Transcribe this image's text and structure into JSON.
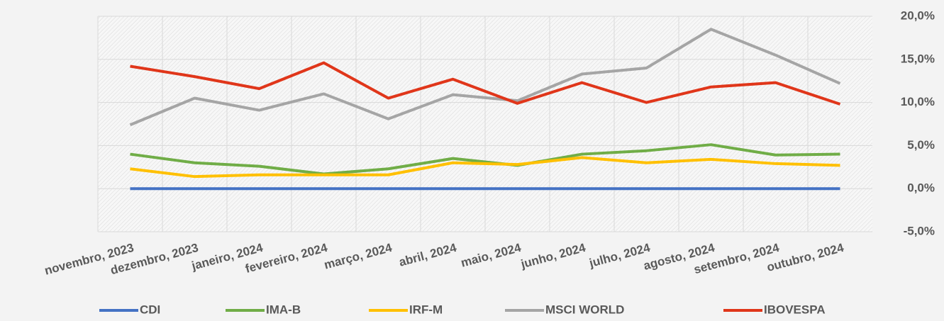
{
  "chart_data": {
    "type": "line",
    "categories": [
      "novembro, 2023",
      "dezembro, 2023",
      "janeiro, 2024",
      "fevereiro, 2024",
      "março, 2024",
      "abril, 2024",
      "maio, 2024",
      "junho, 2024",
      "julho, 2024",
      "agosto, 2024",
      "setembro, 2024",
      "outubro, 2024"
    ],
    "series": [
      {
        "name": "CDI",
        "color": "#4472c4",
        "values": [
          0,
          0,
          0,
          0,
          0,
          0,
          0,
          0,
          0,
          0,
          0,
          0
        ]
      },
      {
        "name": "IMA-B",
        "color": "#70ad47",
        "values": [
          4.0,
          3.0,
          2.6,
          1.7,
          2.3,
          3.5,
          2.7,
          4.0,
          4.4,
          5.1,
          3.9,
          4.0
        ]
      },
      {
        "name": "IRF-M",
        "color": "#ffc000",
        "values": [
          2.3,
          1.4,
          1.6,
          1.6,
          1.6,
          3.0,
          2.8,
          3.6,
          3.0,
          3.4,
          2.9,
          2.7
        ]
      },
      {
        "name": "MSCI WORLD",
        "color": "#a5a5a5",
        "values": [
          7.4,
          10.5,
          9.1,
          11.0,
          8.1,
          10.9,
          10.2,
          13.3,
          14.0,
          18.5,
          15.5,
          12.2
        ]
      },
      {
        "name": "IBOVESPA",
        "color": "#e0361a",
        "values": [
          14.2,
          13.0,
          11.6,
          14.6,
          10.5,
          12.7,
          9.9,
          12.3,
          10.0,
          11.8,
          12.3,
          9.8
        ]
      }
    ],
    "ylim": [
      -5,
      20
    ],
    "yticks": [
      {
        "value": -5,
        "label": "-5,0%"
      },
      {
        "value": 0,
        "label": "0,0%"
      },
      {
        "value": 5,
        "label": "5,0%"
      },
      {
        "value": 10,
        "label": "10,0%"
      },
      {
        "value": 15,
        "label": "15,0%"
      },
      {
        "value": 20,
        "label": "20,0%"
      }
    ],
    "grid": true,
    "legend": "bottom"
  }
}
